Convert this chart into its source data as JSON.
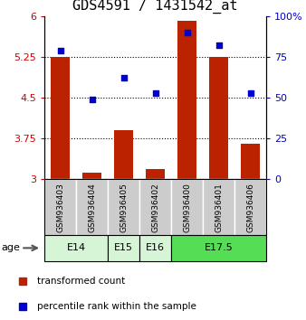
{
  "title": "GDS4591 / 1431542_at",
  "samples": [
    "GSM936403",
    "GSM936404",
    "GSM936405",
    "GSM936402",
    "GSM936400",
    "GSM936401",
    "GSM936406"
  ],
  "transformed_counts": [
    5.25,
    3.12,
    3.9,
    3.18,
    5.92,
    5.25,
    3.65
  ],
  "percentile_ranks": [
    79,
    49,
    62,
    53,
    90,
    82,
    53
  ],
  "age_groups": [
    {
      "label": "E14",
      "samples": [
        "GSM936403",
        "GSM936404"
      ],
      "color": "#d6f5d6"
    },
    {
      "label": "E15",
      "samples": [
        "GSM936405"
      ],
      "color": "#d6f5d6"
    },
    {
      "label": "E16",
      "samples": [
        "GSM936402"
      ],
      "color": "#d6f5d6"
    },
    {
      "label": "E17.5",
      "samples": [
        "GSM936400",
        "GSM936401",
        "GSM936406"
      ],
      "color": "#55dd55"
    }
  ],
  "bar_color": "#bb2200",
  "dot_color": "#0000cc",
  "ylim_left": [
    3,
    6
  ],
  "ylim_right": [
    0,
    100
  ],
  "yticks_left": [
    3,
    3.75,
    4.5,
    5.25,
    6
  ],
  "yticks_right": [
    0,
    25,
    50,
    75,
    100
  ],
  "ytick_labels_left": [
    "3",
    "3.75",
    "4.5",
    "5.25",
    "6"
  ],
  "ytick_labels_right": [
    "0",
    "25",
    "50",
    "75",
    "100%"
  ],
  "hlines": [
    3.75,
    4.5,
    5.25
  ],
  "bar_width": 0.6,
  "title_fontsize": 11,
  "age_label": "age",
  "legend_items": [
    {
      "color": "#bb2200",
      "label": "transformed count"
    },
    {
      "color": "#0000cc",
      "label": "percentile rank within the sample"
    }
  ],
  "sample_box_color": "#cccccc",
  "sample_font_size": 6.5,
  "age_font_size": 8,
  "legend_font_size": 7.5
}
